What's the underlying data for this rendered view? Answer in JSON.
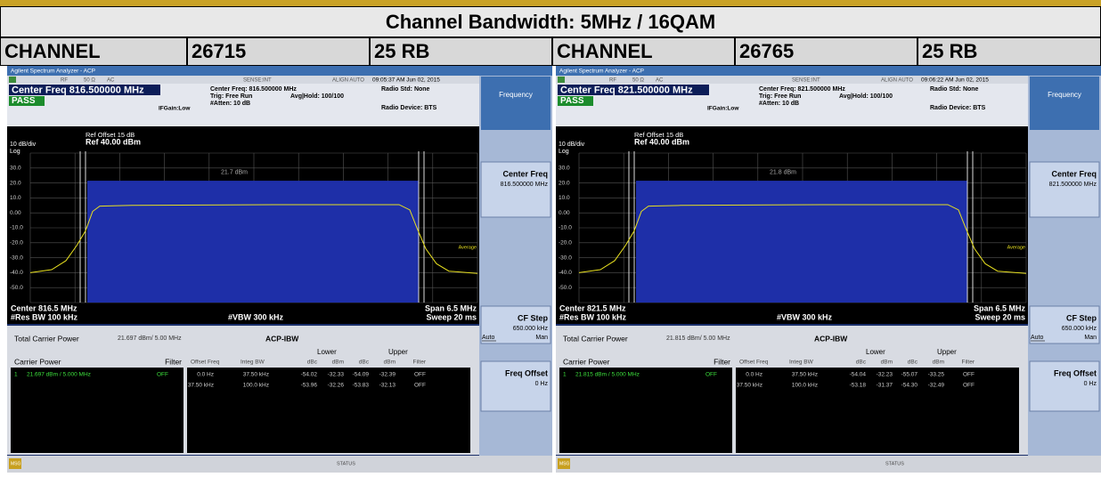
{
  "header": {
    "title": "Channel Bandwidth: 5MHz / 16QAM",
    "cells": [
      "CHANNEL",
      "26715",
      "25 RB",
      "CHANNEL",
      "26765",
      "25 RB"
    ]
  },
  "panels": [
    {
      "app": "Agilent Spectrum Analyzer - ACP",
      "rf": "RF",
      "ohm": "50 Ω",
      "ac": "AC",
      "sense": "SENSE:INT",
      "align": "ALIGN AUTO",
      "time": "09:05:37 AM Jun 02, 2015",
      "center_freq": "Center Freq 816.500000 MHz",
      "pass": "PASS",
      "cf_detail": "Center Freq: 816.500000 MHz",
      "trig": "Trig: Free Run",
      "avg": "Avg|Hold: 100/100",
      "atten": "#Atten: 10 dB",
      "ifgain": "IFGain:Low",
      "radio_std": "Radio Std: None",
      "radio_device": "Radio Device: BTS",
      "ref_offset": "Ref Offset 15 dB",
      "ref": "Ref 40.00 dBm",
      "scale": "10 dB/div",
      "log": "Log",
      "yticks": [
        "30.0",
        "20.0",
        "10.0",
        "0.00",
        "-10.0",
        "-20.0",
        "-30.0",
        "-40.0",
        "-50.0"
      ],
      "carrier_label": "21.7 dBm",
      "average": "Average",
      "center": "Center  816.5 MHz",
      "res_bw": "#Res BW  100 kHz",
      "vbw": "#VBW  300 kHz",
      "span": "Span 6.5 MHz",
      "sweep": "Sweep  20 ms",
      "softkeys": {
        "menu": "Frequency",
        "center_freq": "Center Freq",
        "center_value": "816.500000 MHz",
        "cf_step": "CF Step",
        "cf_step_value": "650.000 kHz",
        "auto": "Auto",
        "man": "Man",
        "freq_offset": "Freq Offset",
        "freq_offset_value": "0 Hz"
      },
      "results": {
        "total_label": "Total Carrier Power",
        "total_value": "21.697 dBm/ 5.00 MHz",
        "mode": "ACP-IBW",
        "carrier_power": "Carrier Power",
        "filter": "Filter",
        "lower": "Lower",
        "upper": "Upper",
        "carrier_row": [
          "1",
          "21.697 dBm / 5.000 MHz",
          "OFF"
        ],
        "columns": [
          "Offset Freq",
          "Integ BW",
          "dBc",
          "dBm",
          "dBc",
          "dBm",
          "Filter"
        ],
        "rows": [
          [
            "0.0 Hz",
            "37.50 kHz",
            "-54.02",
            "-32.33",
            "-54.09",
            "-32.39",
            "OFF"
          ],
          [
            "37.50 kHz",
            "100.0 kHz",
            "-53.96",
            "-32.26",
            "-53.83",
            "-32.13",
            "OFF"
          ]
        ]
      },
      "msg": "MSG",
      "status": "STATUS"
    },
    {
      "app": "Agilent Spectrum Analyzer - ACP",
      "rf": "RF",
      "ohm": "50 Ω",
      "ac": "AC",
      "sense": "SENSE:INT",
      "align": "ALIGN AUTO",
      "time": "09:06:22 AM Jun 02, 2015",
      "center_freq": "Center Freq 821.500000 MHz",
      "pass": "PASS",
      "cf_detail": "Center Freq: 821.500000 MHz",
      "trig": "Trig: Free Run",
      "avg": "Avg|Hold: 100/100",
      "atten": "#Atten: 10 dB",
      "ifgain": "IFGain:Low",
      "radio_std": "Radio Std: None",
      "radio_device": "Radio Device: BTS",
      "ref_offset": "Ref Offset 15 dB",
      "ref": "Ref 40.00 dBm",
      "scale": "10 dB/div",
      "log": "Log",
      "yticks": [
        "30.0",
        "20.0",
        "10.0",
        "0.00",
        "-10.0",
        "-20.0",
        "-30.0",
        "-40.0",
        "-50.0"
      ],
      "carrier_label": "21.8 dBm",
      "average": "Average",
      "center": "Center  821.5 MHz",
      "res_bw": "#Res BW  100 kHz",
      "vbw": "#VBW  300 kHz",
      "span": "Span 6.5 MHz",
      "sweep": "Sweep  20 ms",
      "softkeys": {
        "menu": "Frequency",
        "center_freq": "Center Freq",
        "center_value": "821.500000 MHz",
        "cf_step": "CF Step",
        "cf_step_value": "650.000 kHz",
        "auto": "Auto",
        "man": "Man",
        "freq_offset": "Freq Offset",
        "freq_offset_value": "0 Hz"
      },
      "results": {
        "total_label": "Total Carrier Power",
        "total_value": "21.815 dBm/ 5.00 MHz",
        "mode": "ACP-IBW",
        "carrier_power": "Carrier Power",
        "filter": "Filter",
        "lower": "Lower",
        "upper": "Upper",
        "carrier_row": [
          "1",
          "21.815 dBm / 5.000 MHz",
          "OFF"
        ],
        "columns": [
          "Offset Freq",
          "Integ BW",
          "dBc",
          "dBm",
          "dBc",
          "dBm",
          "Filter"
        ],
        "rows": [
          [
            "0.0 Hz",
            "37.50 kHz",
            "-54.04",
            "-32.23",
            "-55.07",
            "-33.25",
            "OFF"
          ],
          [
            "37.50 kHz",
            "100.0 kHz",
            "-53.18",
            "-31.37",
            "-54.30",
            "-32.49",
            "OFF"
          ]
        ]
      },
      "msg": "MSG",
      "status": "STATUS"
    }
  ]
}
